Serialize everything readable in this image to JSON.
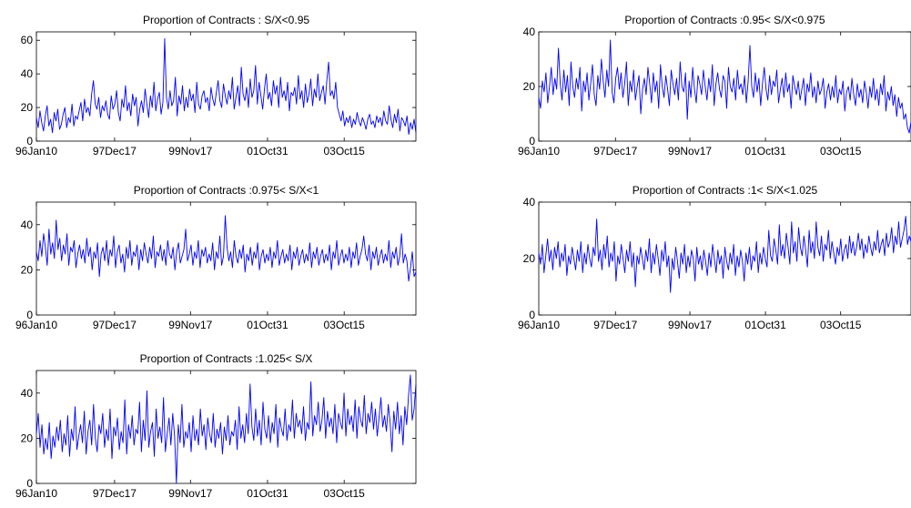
{
  "figure": {
    "background": "#ffffff",
    "line_color": "#0000ff",
    "axis_color": "#000000"
  },
  "chart_data": [
    {
      "type": "line",
      "title": "Proportion of Contracts : S/X<0.95",
      "xlabel": "",
      "ylabel": "",
      "ylim": [
        0,
        65
      ],
      "yticks": [
        0,
        20,
        40,
        60
      ],
      "xtick_labels": [
        "96Jan10",
        "97Dec17",
        "99Nov17",
        "01Oct31",
        "03Oct15"
      ],
      "grid": false,
      "series": [
        {
          "color": "#0000ff",
          "values": [
            14,
            8,
            18,
            11,
            6,
            15,
            21,
            9,
            13,
            5,
            17,
            12,
            19,
            7,
            10,
            16,
            20,
            8,
            14,
            11,
            22,
            9,
            15,
            13,
            18,
            23,
            12,
            25,
            17,
            20,
            15,
            28,
            36,
            22,
            19,
            26,
            14,
            21,
            18,
            24,
            16,
            13,
            27,
            19,
            22,
            30,
            17,
            12,
            25,
            20,
            33,
            18,
            23,
            15,
            28,
            21,
            26,
            9,
            19,
            24,
            17,
            31,
            22,
            14,
            27,
            20,
            35,
            18,
            25,
            29,
            16,
            23,
            61,
            26,
            19,
            30,
            21,
            24,
            38,
            15,
            27,
            22,
            33,
            18,
            26,
            20,
            31,
            24,
            28,
            17,
            35,
            22,
            19,
            27,
            30,
            23,
            26,
            18,
            32,
            25,
            21,
            29,
            36,
            24,
            20,
            34,
            27,
            22,
            30,
            25,
            38,
            19,
            26,
            33,
            21,
            44,
            28,
            24,
            32,
            20,
            37,
            26,
            30,
            45,
            22,
            35,
            27,
            19,
            31,
            40,
            25,
            29,
            21,
            36,
            28,
            33,
            20,
            38,
            26,
            30,
            24,
            35,
            18,
            29,
            27,
            32,
            22,
            39,
            25,
            30,
            20,
            34,
            23,
            28,
            37,
            21,
            31,
            26,
            40,
            24,
            29,
            33,
            22,
            36,
            47,
            27,
            30,
            25,
            35,
            20,
            16,
            12,
            18,
            9,
            14,
            11,
            15,
            8,
            13,
            10,
            17,
            12,
            9,
            14,
            11,
            7,
            13,
            16,
            10,
            12,
            8,
            15,
            11,
            14,
            9,
            18,
            12,
            10,
            21,
            13,
            8,
            16,
            11,
            19,
            6,
            14,
            12,
            9,
            15,
            4,
            11,
            7,
            13,
            5
          ]
        }
      ]
    },
    {
      "type": "line",
      "title": "Proportion of Contracts :0.95< S/X<0.975",
      "xlabel": "",
      "ylabel": "",
      "ylim": [
        0,
        40
      ],
      "yticks": [
        0,
        20,
        40
      ],
      "xtick_labels": [
        "96Jan10",
        "97Dec17",
        "99Nov17",
        "01Oct31",
        "03Oct15"
      ],
      "grid": false,
      "series": [
        {
          "color": "#0000ff",
          "values": [
            16,
            12,
            22,
            18,
            25,
            14,
            20,
            27,
            17,
            23,
            19,
            34,
            21,
            15,
            26,
            18,
            24,
            13,
            29,
            20,
            16,
            23,
            19,
            27,
            11,
            22,
            18,
            25,
            15,
            21,
            28,
            17,
            13,
            24,
            19,
            30,
            22,
            16,
            26,
            20,
            37,
            18,
            14,
            23,
            27,
            19,
            25,
            16,
            21,
            29,
            13,
            22,
            18,
            26,
            15,
            20,
            24,
            10,
            19,
            23,
            17,
            27,
            21,
            14,
            25,
            18,
            22,
            12,
            28,
            20,
            16,
            24,
            19,
            13,
            26,
            21,
            17,
            23,
            15,
            29,
            20,
            18,
            25,
            8,
            22,
            16,
            27,
            19,
            14,
            24,
            21,
            17,
            26,
            20,
            15,
            23,
            18,
            28,
            13,
            21,
            25,
            19,
            16,
            24,
            22,
            12,
            27,
            20,
            18,
            23,
            15,
            26,
            19,
            21,
            17,
            24,
            14,
            22,
            35,
            20,
            16,
            25,
            18,
            23,
            13,
            21,
            27,
            19,
            15,
            24,
            17,
            22,
            20,
            26,
            14,
            19,
            23,
            16,
            25,
            18,
            21,
            12,
            24,
            20,
            17,
            22,
            15,
            19,
            23,
            13,
            21,
            18,
            25,
            16,
            20,
            14,
            22,
            17,
            19,
            23,
            12,
            18,
            21,
            15,
            20,
            16,
            24,
            14,
            19,
            17,
            22,
            11,
            18,
            20,
            15,
            23,
            17,
            13,
            21,
            16,
            19,
            14,
            22,
            18,
            12,
            20,
            16,
            23,
            15,
            19,
            13,
            21,
            17,
            24,
            11,
            18,
            15,
            20,
            13,
            17,
            9,
            16,
            12,
            14,
            8,
            10,
            5,
            3,
            7
          ]
        }
      ]
    },
    {
      "type": "line",
      "title": "Proportion of Contracts :0.975< S/X<1",
      "xlabel": "",
      "ylabel": "",
      "ylim": [
        0,
        50
      ],
      "yticks": [
        0,
        20,
        40
      ],
      "xtick_labels": [
        "96Jan10",
        "97Dec17",
        "99Nov17",
        "01Oct31",
        "03Oct15"
      ],
      "grid": false,
      "series": [
        {
          "color": "#0000ff",
          "values": [
            28,
            24,
            33,
            26,
            36,
            30,
            22,
            38,
            27,
            32,
            25,
            42,
            29,
            34,
            24,
            31,
            27,
            36,
            22,
            30,
            28,
            33,
            21,
            27,
            31,
            25,
            29,
            23,
            34,
            26,
            30,
            20,
            28,
            25,
            32,
            17,
            27,
            30,
            24,
            33,
            22,
            29,
            26,
            35,
            21,
            28,
            31,
            23,
            27,
            19,
            30,
            25,
            33,
            22,
            28,
            26,
            31,
            20,
            29,
            24,
            32,
            27,
            23,
            30,
            25,
            35,
            21,
            28,
            26,
            31,
            24,
            29,
            22,
            33,
            27,
            25,
            30,
            20,
            28,
            32,
            23,
            26,
            29,
            38,
            24,
            27,
            31,
            22,
            28,
            25,
            33,
            21,
            29,
            26,
            30,
            23,
            27,
            24,
            32,
            20,
            28,
            25,
            35,
            22,
            26,
            44,
            30,
            24,
            28,
            21,
            33,
            26,
            23,
            29,
            25,
            31,
            19,
            27,
            24,
            30,
            22,
            28,
            25,
            32,
            20,
            26,
            29,
            23,
            27,
            24,
            30,
            21,
            28,
            25,
            33,
            22,
            26,
            29,
            23,
            27,
            24,
            31,
            20,
            28,
            25,
            30,
            22,
            26,
            29,
            23,
            27,
            24,
            32,
            21,
            28,
            25,
            30,
            22,
            26,
            29,
            23,
            27,
            24,
            31,
            20,
            28,
            25,
            33,
            22,
            26,
            29,
            23,
            27,
            24,
            30,
            21,
            28,
            25,
            32,
            22,
            26,
            29,
            35,
            27,
            24,
            31,
            20,
            28,
            25,
            30,
            22,
            26,
            29,
            23,
            27,
            24,
            33,
            21,
            28,
            25,
            30,
            22,
            26,
            36,
            23,
            27,
            24,
            15,
            21,
            28,
            17,
            19
          ]
        }
      ]
    },
    {
      "type": "line",
      "title": "Proportion of Contracts :1< S/X<1.025",
      "xlabel": "",
      "ylabel": "",
      "ylim": [
        0,
        40
      ],
      "yticks": [
        0,
        20,
        40
      ],
      "xtick_labels": [
        "96Jan10",
        "97Dec17",
        "99Nov17",
        "01Oct31",
        "03Oct15"
      ],
      "grid": false,
      "series": [
        {
          "color": "#0000ff",
          "values": [
            22,
            18,
            25,
            15,
            21,
            27,
            19,
            23,
            16,
            24,
            20,
            26,
            17,
            22,
            19,
            25,
            14,
            21,
            18,
            24,
            20,
            16,
            23,
            19,
            26,
            15,
            22,
            18,
            25,
            20,
            17,
            24,
            21,
            34,
            19,
            23,
            16,
            25,
            20,
            28,
            17,
            22,
            19,
            26,
            12,
            21,
            18,
            25,
            20,
            15,
            23,
            19,
            26,
            17,
            22,
            10,
            21,
            18,
            24,
            20,
            16,
            23,
            19,
            27,
            15,
            22,
            18,
            25,
            20,
            14,
            23,
            19,
            26,
            17,
            21,
            8,
            20,
            16,
            24,
            19,
            13,
            22,
            18,
            25,
            15,
            21,
            17,
            23,
            20,
            12,
            24,
            18,
            21,
            16,
            23,
            19,
            14,
            22,
            17,
            25,
            20,
            15,
            23,
            18,
            21,
            13,
            24,
            19,
            16,
            22,
            18,
            25,
            14,
            21,
            17,
            23,
            19,
            12,
            22,
            18,
            24,
            16,
            21,
            19,
            26,
            15,
            22,
            18,
            24,
            20,
            17,
            30,
            21,
            19,
            27,
            23,
            18,
            32,
            21,
            25,
            20,
            29,
            24,
            18,
            33,
            22,
            26,
            19,
            31,
            24,
            21,
            28,
            23,
            17,
            30,
            22,
            26,
            20,
            33,
            24,
            21,
            28,
            19,
            25,
            23,
            30,
            20,
            26,
            22,
            18,
            24,
            21,
            27,
            19,
            23,
            25,
            20,
            28,
            22,
            26,
            21,
            24,
            29,
            23,
            27,
            20,
            25,
            22,
            28,
            24,
            21,
            26,
            23,
            30,
            22,
            25,
            27,
            21,
            29,
            24,
            26,
            31,
            22,
            28,
            25,
            33,
            24,
            27,
            30,
            35,
            25,
            28,
            26
          ]
        }
      ]
    },
    {
      "type": "line",
      "title": "Proportion of Contracts :1.025< S/X",
      "xlabel": "",
      "ylabel": "",
      "ylim": [
        0,
        50
      ],
      "yticks": [
        0,
        20,
        40
      ],
      "xtick_labels": [
        "96Jan10",
        "97Dec17",
        "99Nov17",
        "01Oct31",
        "03Oct15"
      ],
      "grid": false,
      "series": [
        {
          "color": "#0000ff",
          "values": [
            22,
            31,
            16,
            26,
            13,
            20,
            15,
            27,
            11,
            21,
            16,
            25,
            19,
            28,
            14,
            22,
            17,
            30,
            12,
            24,
            19,
            34,
            15,
            21,
            26,
            18,
            32,
            13,
            23,
            28,
            17,
            35,
            20,
            14,
            26,
            22,
            31,
            16,
            24,
            19,
            33,
            11,
            25,
            21,
            29,
            15,
            23,
            18,
            37,
            13,
            26,
            20,
            30,
            17,
            24,
            22,
            36,
            14,
            28,
            19,
            41,
            16,
            23,
            27,
            12,
            33,
            20,
            25,
            18,
            38,
            14,
            22,
            29,
            17,
            31,
            21,
            0,
            26,
            18,
            35,
            16,
            23,
            20,
            27,
            14,
            30,
            19,
            24,
            17,
            33,
            21,
            26,
            15,
            29,
            22,
            18,
            31,
            16,
            24,
            20,
            27,
            13,
            25,
            19,
            30,
            17,
            23,
            21,
            28,
            15,
            34,
            20,
            26,
            18,
            31,
            22,
            44,
            25,
            19,
            33,
            21,
            28,
            17,
            36,
            24,
            20,
            30,
            18,
            27,
            22,
            35,
            16,
            29,
            24,
            21,
            33,
            19,
            26,
            23,
            37,
            20,
            31,
            25,
            28,
            22,
            34,
            19,
            27,
            24,
            45,
            21,
            30,
            26,
            36,
            23,
            28,
            38,
            20,
            32,
            25,
            29,
            22,
            35,
            18,
            31,
            27,
            24,
            40,
            21,
            33,
            26,
            30,
            23,
            37,
            20,
            34,
            28,
            25,
            39,
            22,
            31,
            27,
            36,
            24,
            33,
            21,
            29,
            38,
            25,
            30,
            23,
            35,
            27,
            14,
            32,
            24,
            36,
            22,
            30,
            17,
            34,
            26,
            39,
            48,
            28,
            33,
            44
          ]
        }
      ]
    }
  ]
}
